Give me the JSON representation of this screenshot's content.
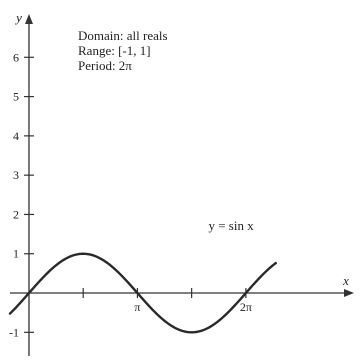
{
  "info": {
    "domain": "Domain:  all reals",
    "range": "Range:  [-1, 1]",
    "period": "Period:  2π"
  },
  "colors": {
    "axis": "#333333",
    "curve": "#2a2a2a",
    "text": "#222222"
  },
  "chart_data": {
    "type": "line",
    "function": "sin",
    "xlabel": "x",
    "ylabel": "y",
    "xlim": [
      -0.55,
      9.3
    ],
    "ylim": [
      -1.45,
      7.0
    ],
    "grid": false,
    "x_ticks": [
      {
        "value": 1.5708,
        "label": ""
      },
      {
        "value": 3.14159,
        "label": "π"
      },
      {
        "value": 4.71239,
        "label": ""
      },
      {
        "value": 6.28319,
        "label": "2π"
      }
    ],
    "y_ticks": [
      {
        "value": -1,
        "label": "-1"
      },
      {
        "value": 1,
        "label": "1"
      },
      {
        "value": 2,
        "label": "2"
      },
      {
        "value": 3,
        "label": "3"
      },
      {
        "value": 4,
        "label": "4"
      },
      {
        "value": 5,
        "label": "5"
      },
      {
        "value": 6,
        "label": "6"
      }
    ],
    "series": [
      {
        "name": "y = sin x",
        "x_range": [
          -0.55,
          7.15
        ],
        "samples": 160
      }
    ],
    "annotation": {
      "text": "y = sin x",
      "anchor_x": 5.2,
      "anchor_y": 1.6
    }
  }
}
